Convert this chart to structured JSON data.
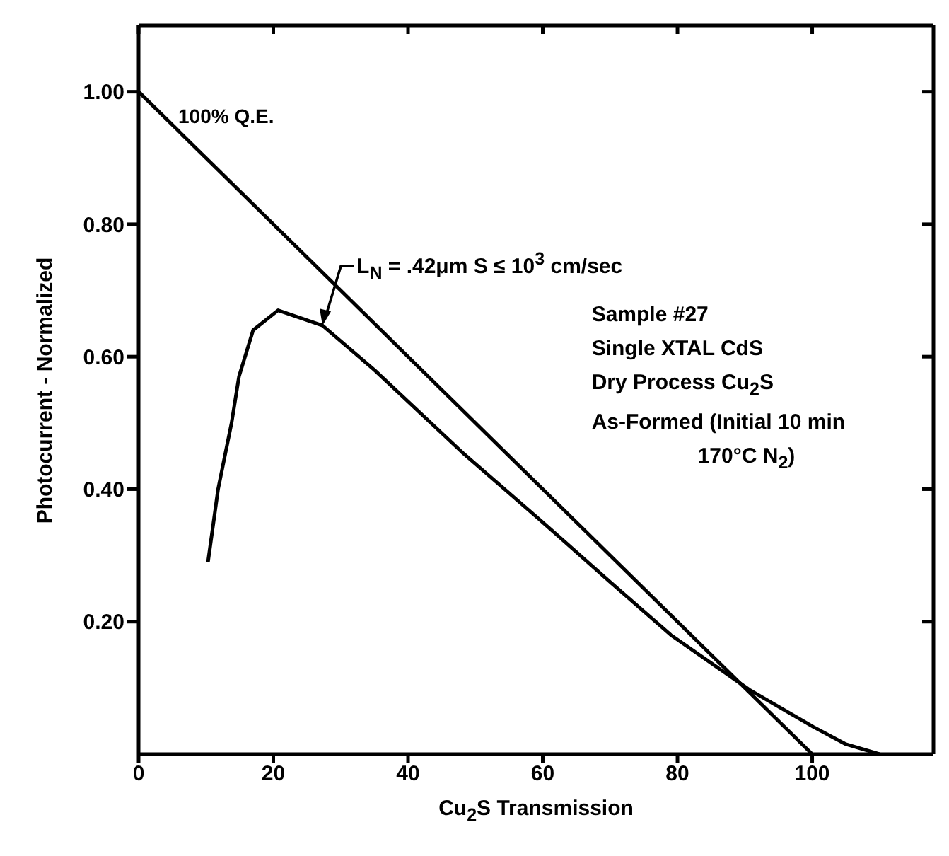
{
  "chart_data": {
    "type": "line",
    "xlabel": "Cu$_{2}$S Transmission",
    "ylabel": "Photocurrent - Normalized",
    "xlim": [
      0,
      118
    ],
    "xticks": [
      0,
      20,
      40,
      60,
      80,
      100
    ],
    "ylim": [
      0,
      1.1
    ],
    "yticks": [
      {
        "value": 0.2,
        "label": "0.20"
      },
      {
        "value": 0.4,
        "label": "0.40"
      },
      {
        "value": 0.6,
        "label": "0.60"
      },
      {
        "value": 0.8,
        "label": "0.80"
      },
      {
        "value": 1.0,
        "label": "1.00"
      }
    ],
    "series": [
      {
        "color": "#000000",
        "x": [
          0,
          100
        ],
        "values": [
          1.0,
          0
        ]
      },
      {
        "color": "#000000",
        "x": [
          10.3,
          11.8,
          13.8,
          14.9,
          17,
          20.7,
          27.3,
          35,
          48,
          60,
          70,
          79,
          90.7,
          100.2,
          105,
          110
        ],
        "values": [
          0.29,
          0.4,
          0.5,
          0.57,
          0.64,
          0.67,
          0.647,
          0.58,
          0.456,
          0.35,
          0.26,
          0.18,
          0.097,
          0.041,
          0.015,
          0
        ]
      }
    ],
    "annotations": [
      {
        "text": "100% Q.E.",
        "x": 0,
        "y": 1.0
      },
      {
        "text": "L$_{N}$ = .42μm S ≤ 10$^{3}$ cm/sec",
        "x": 27.3,
        "y": 0.647
      },
      "Sample #27",
      "Single XTAL CdS",
      "Dry Process Cu$_{2}$S",
      "As-Formed (Initial 10 min",
      "170°C N$_{2}$)"
    ],
    "grid": false,
    "legend": false,
    "marker": "none",
    "line_style": "solid"
  }
}
